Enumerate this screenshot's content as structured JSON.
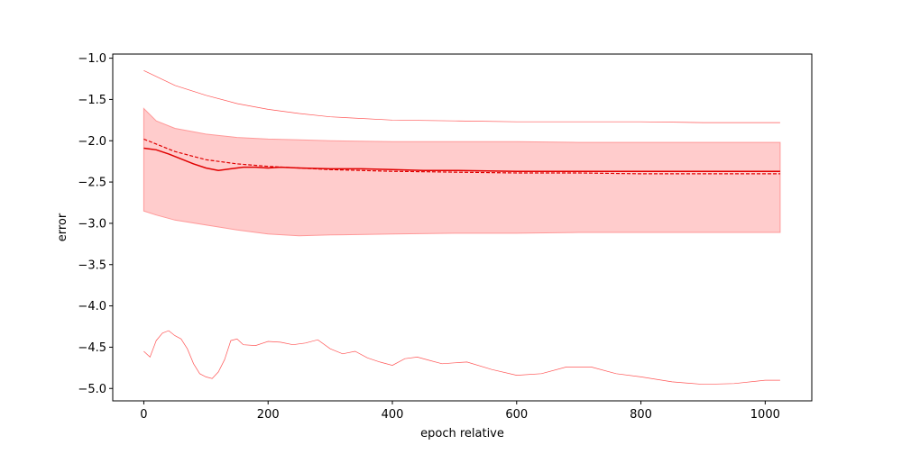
{
  "chart_data": {
    "type": "line",
    "title": "",
    "xlabel": "epoch relative",
    "ylabel": "error",
    "xlim": [
      -50,
      1075
    ],
    "ylim": [
      -5.15,
      -0.95
    ],
    "x_ticks": [
      0,
      200,
      400,
      600,
      800,
      1000
    ],
    "x_tick_labels": [
      "0",
      "200",
      "400",
      "600",
      "800",
      "1000"
    ],
    "y_ticks": [
      -1.0,
      -1.5,
      -2.0,
      -2.5,
      -3.0,
      -3.5,
      -4.0,
      -4.5,
      -5.0
    ],
    "y_tick_labels": [
      "−1.0",
      "−1.5",
      "−2.0",
      "−2.5",
      "−3.0",
      "−3.5",
      "−4.0",
      "−4.5",
      "−5.0"
    ],
    "grid": false,
    "legend": "none",
    "colors": {
      "line": "#e00000",
      "band_fill": "#ffcccc",
      "band_edge": "#ff9999",
      "thin_line": "#ff5555"
    },
    "series": [
      {
        "style": "solid",
        "x": [
          0,
          20,
          40,
          60,
          80,
          100,
          120,
          140,
          160,
          180,
          200,
          220,
          250,
          300,
          350,
          400,
          450,
          500,
          600,
          700,
          800,
          900,
          1000,
          1024
        ],
        "y": [
          -2.09,
          -2.11,
          -2.16,
          -2.22,
          -2.28,
          -2.33,
          -2.36,
          -2.34,
          -2.32,
          -2.32,
          -2.33,
          -2.32,
          -2.33,
          -2.34,
          -2.34,
          -2.35,
          -2.36,
          -2.36,
          -2.37,
          -2.37,
          -2.37,
          -2.37,
          -2.37,
          -2.37
        ]
      },
      {
        "style": "dashed",
        "x": [
          0,
          50,
          100,
          150,
          200,
          250,
          300,
          400,
          500,
          600,
          700,
          800,
          900,
          1000,
          1024
        ],
        "y": [
          -1.98,
          -2.13,
          -2.23,
          -2.28,
          -2.31,
          -2.33,
          -2.35,
          -2.37,
          -2.38,
          -2.39,
          -2.39,
          -2.4,
          -2.4,
          -2.4,
          -2.4
        ]
      },
      {
        "style": "band",
        "x": [
          0,
          20,
          50,
          100,
          150,
          200,
          250,
          300,
          400,
          500,
          600,
          700,
          800,
          900,
          1000,
          1024
        ],
        "upper": [
          -1.61,
          -1.76,
          -1.85,
          -1.92,
          -1.96,
          -1.98,
          -1.99,
          -2.0,
          -2.01,
          -2.01,
          -2.01,
          -2.02,
          -2.02,
          -2.02,
          -2.02,
          -2.02
        ],
        "lower": [
          -2.85,
          -2.9,
          -2.96,
          -3.02,
          -3.08,
          -3.13,
          -3.15,
          -3.14,
          -3.13,
          -3.12,
          -3.12,
          -3.11,
          -3.11,
          -3.11,
          -3.11,
          -3.11
        ]
      },
      {
        "style": "thin",
        "x": [
          0,
          50,
          100,
          150,
          200,
          250,
          300,
          400,
          500,
          600,
          700,
          800,
          900,
          1000,
          1024
        ],
        "y": [
          -1.15,
          -1.33,
          -1.45,
          -1.55,
          -1.62,
          -1.67,
          -1.71,
          -1.75,
          -1.76,
          -1.77,
          -1.77,
          -1.77,
          -1.78,
          -1.78,
          -1.78
        ]
      },
      {
        "style": "thin",
        "x": [
          0,
          10,
          20,
          30,
          40,
          50,
          60,
          70,
          80,
          90,
          100,
          110,
          120,
          130,
          140,
          150,
          160,
          180,
          200,
          220,
          240,
          260,
          280,
          300,
          320,
          340,
          360,
          380,
          400,
          420,
          440,
          460,
          480,
          500,
          520,
          560,
          600,
          640,
          680,
          720,
          760,
          800,
          850,
          900,
          950,
          1000,
          1024
        ],
        "y": [
          -4.55,
          -4.62,
          -4.42,
          -4.33,
          -4.3,
          -4.36,
          -4.4,
          -4.52,
          -4.7,
          -4.82,
          -4.86,
          -4.88,
          -4.8,
          -4.65,
          -4.42,
          -4.4,
          -4.47,
          -4.48,
          -4.43,
          -4.44,
          -4.47,
          -4.45,
          -4.41,
          -4.52,
          -4.58,
          -4.55,
          -4.63,
          -4.68,
          -4.72,
          -4.64,
          -4.62,
          -4.66,
          -4.7,
          -4.69,
          -4.68,
          -4.77,
          -4.84,
          -4.82,
          -4.74,
          -4.74,
          -4.82,
          -4.86,
          -4.92,
          -4.95,
          -4.94,
          -4.9,
          -4.9
        ]
      }
    ]
  }
}
